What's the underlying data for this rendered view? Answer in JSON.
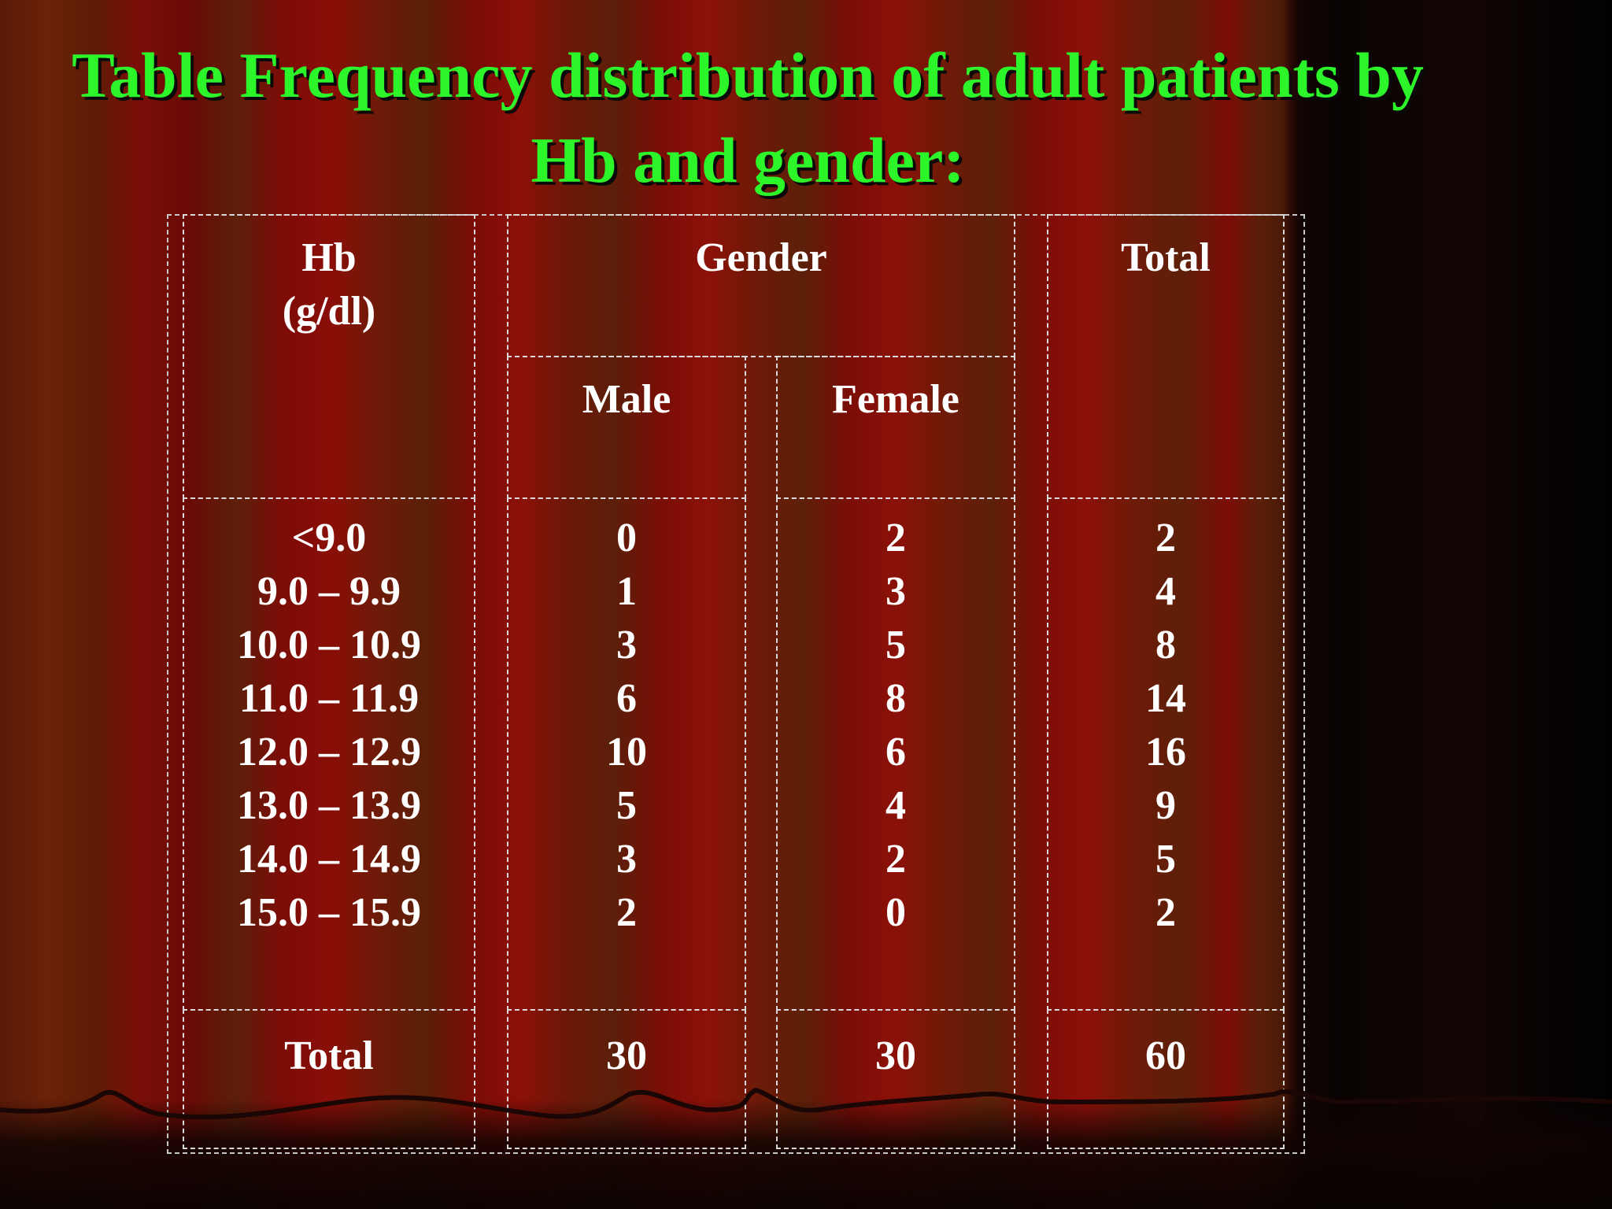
{
  "title": {
    "line1": "Table  Frequency distribution of adult patients by",
    "line2": "Hb and gender:"
  },
  "table": {
    "headers": {
      "hb": "Hb",
      "hb_unit": "(g/dl)",
      "gender": "Gender",
      "male": "Male",
      "female": "Female",
      "total": "Total"
    },
    "rows": [
      {
        "hb": "<9.0",
        "male": "0",
        "female": "2",
        "total": "2"
      },
      {
        "hb": "9.0 – 9.9",
        "male": "1",
        "female": "3",
        "total": "4"
      },
      {
        "hb": "10.0 – 10.9",
        "male": "3",
        "female": "5",
        "total": "8"
      },
      {
        "hb": "11.0 – 11.9",
        "male": "6",
        "female": "8",
        "total": "14"
      },
      {
        "hb": "12.0 – 12.9",
        "male": "10",
        "female": "6",
        "total": "16"
      },
      {
        "hb": "13.0 – 13.9",
        "male": "5",
        "female": "4",
        "total": "9"
      },
      {
        "hb": "14.0 – 14.9",
        "male": "3",
        "female": "2",
        "total": "5"
      },
      {
        "hb": "15.0 – 15.9",
        "male": "2",
        "female": "0",
        "total": "2"
      }
    ],
    "footer": {
      "label": "Total",
      "male": "30",
      "female": "30",
      "total": "60"
    }
  },
  "colors": {
    "title": "#2cf52a",
    "text": "#ffffff",
    "border": "#d9d9d9"
  }
}
